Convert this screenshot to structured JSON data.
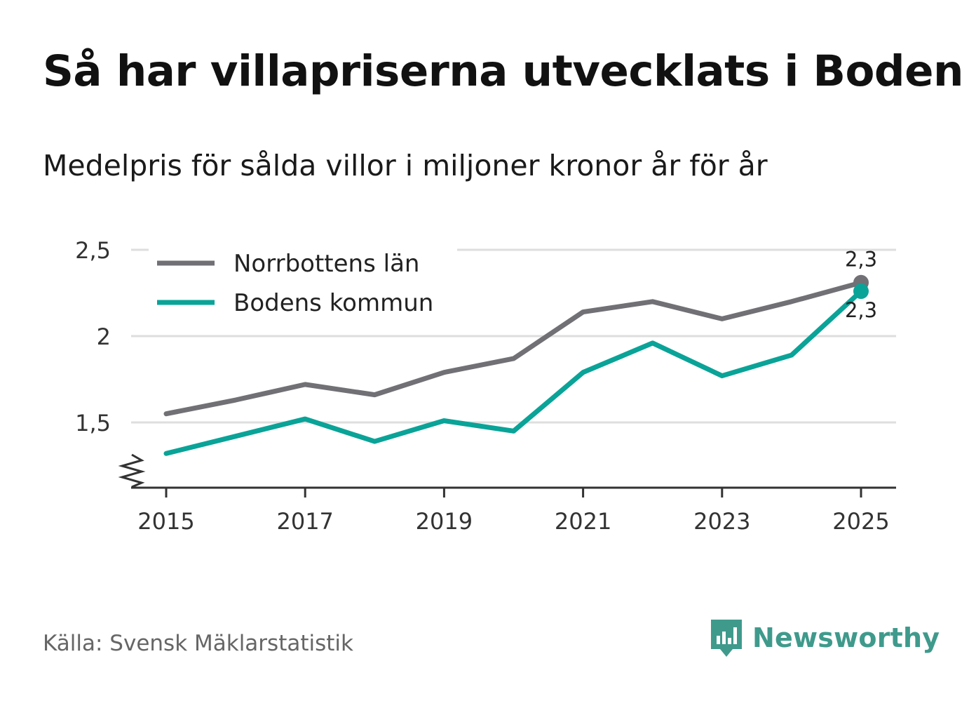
{
  "title": "Så har villapriserna utvecklats i Boden",
  "subtitle": "Medelpris för sålda villor i miljoner kronor år för år",
  "source": "Källa: Svensk Mäklarstatistik",
  "brand": {
    "name": "Newsworthy",
    "color": "#3f9a8c",
    "icon": "bar-chart-speech-bubble-icon"
  },
  "chart_data": {
    "type": "line",
    "title": "Så har villapriserna utvecklats i Boden",
    "xlabel": "",
    "ylabel": "Medelpris för sålda villor i miljoner kronor",
    "x": [
      2015,
      2016,
      2017,
      2018,
      2019,
      2020,
      2021,
      2022,
      2023,
      2024,
      2025
    ],
    "xticks": [
      "2015",
      "2017",
      "2019",
      "2021",
      "2023",
      "2025"
    ],
    "xtick_values": [
      2015,
      2017,
      2019,
      2021,
      2023,
      2025
    ],
    "yticks": [
      "1,5",
      "2",
      "2,5"
    ],
    "ytick_values": [
      1.5,
      2,
      2.5
    ],
    "ylim": [
      1.14,
      2.5
    ],
    "grid": true,
    "axis_break": true,
    "legend_position": "top-left",
    "series": [
      {
        "name": "Norrbottens län",
        "color": "#717075",
        "values": [
          1.55,
          1.63,
          1.72,
          1.66,
          1.79,
          1.87,
          2.14,
          2.2,
          2.1,
          2.2,
          2.31
        ],
        "end_label": "2,3"
      },
      {
        "name": "Bodens kommun",
        "color": "#0aa398",
        "values": [
          1.32,
          1.42,
          1.52,
          1.39,
          1.51,
          1.45,
          1.79,
          1.96,
          1.77,
          1.89,
          2.26
        ],
        "end_label": "2,3"
      }
    ]
  }
}
